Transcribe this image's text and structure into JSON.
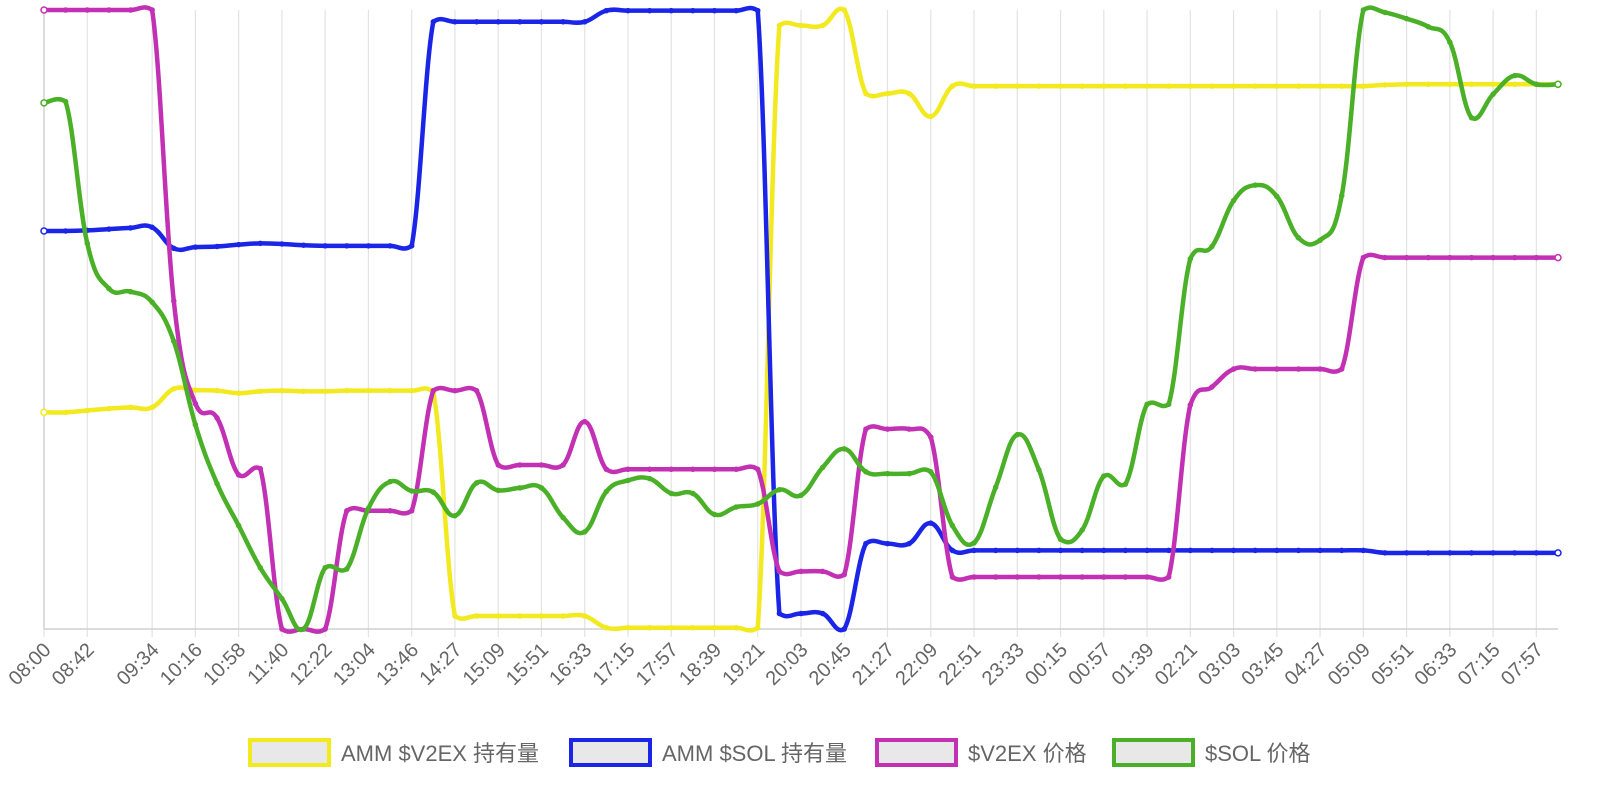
{
  "chart_data": {
    "type": "line",
    "x": [
      "08:00",
      "08:21",
      "08:42",
      "09:03",
      "09:24",
      "09:34",
      "09:55",
      "10:16",
      "10:37",
      "10:58",
      "11:19",
      "11:40",
      "12:01",
      "12:22",
      "12:43",
      "13:04",
      "13:25",
      "13:46",
      "14:07",
      "14:27",
      "14:48",
      "15:09",
      "15:30",
      "15:51",
      "16:12",
      "16:33",
      "16:54",
      "17:15",
      "17:36",
      "17:57",
      "18:18",
      "18:39",
      "19:00",
      "19:21",
      "19:42",
      "20:03",
      "20:24",
      "20:45",
      "21:06",
      "21:27",
      "21:48",
      "22:09",
      "22:30",
      "22:51",
      "23:12",
      "23:33",
      "23:54",
      "00:15",
      "00:36",
      "00:57",
      "01:18",
      "01:39",
      "02:00",
      "02:21",
      "02:42",
      "03:03",
      "03:24",
      "03:45",
      "04:06",
      "04:27",
      "04:48",
      "05:09",
      "05:30",
      "05:51",
      "06:12",
      "06:33",
      "06:54",
      "07:15",
      "07:36",
      "07:57",
      "08:00"
    ],
    "x_tick_labels": [
      "08:00",
      "08:42",
      "09:34",
      "10:16",
      "10:58",
      "11:40",
      "12:22",
      "13:04",
      "13:46",
      "14:27",
      "15:09",
      "15:51",
      "16:33",
      "17:15",
      "17:57",
      "18:39",
      "19:21",
      "20:03",
      "20:45",
      "21:27",
      "22:09",
      "22:51",
      "23:33",
      "00:15",
      "00:57",
      "01:39",
      "02:21",
      "03:03",
      "03:45",
      "04:27",
      "05:09",
      "05:51",
      "06:33",
      "07:15",
      "07:57"
    ],
    "y_axis_labels_shown": false,
    "grid": "vertical",
    "legend_position": "bottom",
    "series": [
      {
        "name": "AMM $V2EX 持有量",
        "color": "#f2ea1f",
        "values": [
          35,
          35,
          35.3,
          35.6,
          35.8,
          35.8,
          38.8,
          38.6,
          38.5,
          38.1,
          38.4,
          38.5,
          38.4,
          38.4,
          38.5,
          38.5,
          38.5,
          38.5,
          38.3,
          2.1,
          2.1,
          2.1,
          2.1,
          2.1,
          2.1,
          2.1,
          0.2,
          0.2,
          0.2,
          0.2,
          0.2,
          0.2,
          0.2,
          0.2,
          97.5,
          97.5,
          97.5,
          100,
          86.5,
          86.5,
          86.5,
          82.8,
          87.7,
          87.7,
          87.7,
          87.7,
          87.7,
          87.7,
          87.7,
          87.7,
          87.7,
          87.7,
          87.7,
          87.7,
          87.7,
          87.7,
          87.7,
          87.7,
          87.7,
          87.7,
          87.7,
          87.7,
          87.9,
          88,
          88,
          88,
          88,
          88,
          88,
          88,
          88
        ]
      },
      {
        "name": "AMM $SOL 持有量",
        "color": "#1a25e8",
        "values": [
          64.3,
          64.3,
          64.4,
          64.6,
          64.8,
          64.9,
          61.5,
          61.7,
          61.8,
          62.1,
          62.3,
          62.2,
          62,
          61.9,
          61.9,
          61.9,
          61.9,
          61.9,
          98.1,
          98.1,
          98.1,
          98.1,
          98.1,
          98.1,
          98.1,
          98.1,
          99.9,
          99.9,
          99.9,
          99.9,
          99.9,
          99.9,
          99.9,
          99.9,
          2.5,
          2.5,
          2.5,
          0,
          13.8,
          13.8,
          13.8,
          17.1,
          12.7,
          12.7,
          12.7,
          12.7,
          12.7,
          12.7,
          12.7,
          12.7,
          12.7,
          12.7,
          12.7,
          12.7,
          12.7,
          12.7,
          12.7,
          12.7,
          12.7,
          12.7,
          12.7,
          12.7,
          12.3,
          12.3,
          12.3,
          12.3,
          12.3,
          12.3,
          12.3,
          12.3,
          12.3
        ]
      },
      {
        "name": "$V2EX 价格",
        "color": "#c230b4",
        "values": [
          100,
          100,
          100,
          100,
          100,
          100,
          53,
          36.4,
          34.1,
          24.9,
          25.9,
          0,
          0,
          0,
          19.1,
          19.1,
          19.1,
          19.1,
          38.5,
          38.5,
          38.5,
          26.5,
          26.5,
          26.5,
          26.5,
          33.5,
          25.8,
          25.8,
          25.8,
          25.8,
          25.8,
          25.8,
          25.8,
          25.8,
          9.3,
          9.3,
          9.3,
          8.8,
          32.3,
          32.3,
          32.3,
          31,
          8.4,
          8.4,
          8.4,
          8.4,
          8.4,
          8.4,
          8.4,
          8.4,
          8.4,
          8.4,
          8.4,
          36.2,
          39.1,
          42,
          42,
          42,
          42,
          42,
          42,
          60,
          60,
          60,
          60,
          60,
          60,
          60,
          60,
          60,
          60
        ]
      },
      {
        "name": "$SOL 价格",
        "color": "#4ab027",
        "values": [
          85,
          85.2,
          62.3,
          55,
          54.5,
          52.8,
          46.5,
          33,
          23.5,
          16.7,
          9.9,
          4.9,
          0,
          9.9,
          9.7,
          19.5,
          23.8,
          22.3,
          22.1,
          18.3,
          23.6,
          22.4,
          22.8,
          22.8,
          18,
          15.7,
          22.2,
          24,
          24.3,
          21.9,
          21.9,
          18.5,
          19.7,
          20.2,
          22.5,
          21.6,
          26.1,
          29.1,
          25.4,
          25.1,
          25.1,
          25.4,
          16.7,
          13.9,
          22.9,
          31.4,
          25.7,
          14.5,
          16,
          24.7,
          23.4,
          36.3,
          36.3,
          59.8,
          61.8,
          69.2,
          71.7,
          69.9,
          63.2,
          62.8,
          70,
          100,
          99.6,
          98.6,
          97.3,
          94.8,
          82.6,
          86.4,
          89.4,
          88,
          88
        ]
      }
    ]
  }
}
